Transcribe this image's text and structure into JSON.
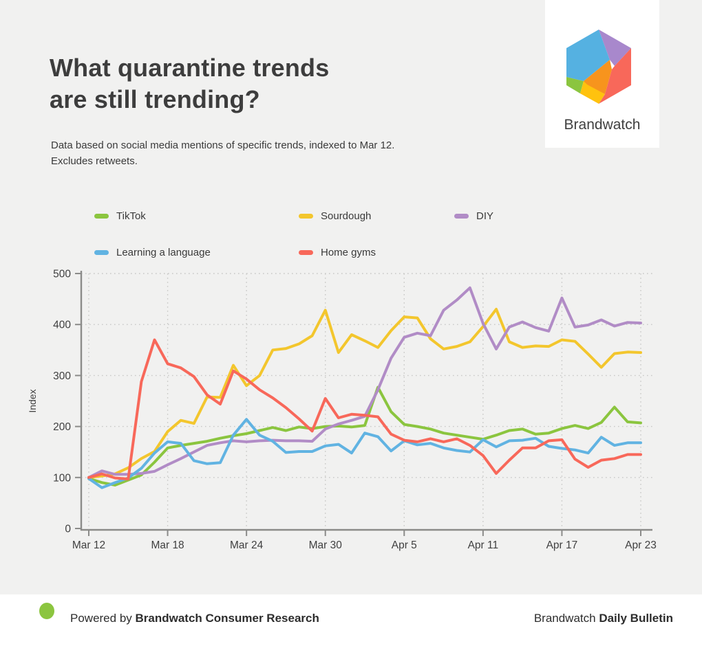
{
  "header": {
    "title": "What quarantine trends\nare still trending?",
    "subtitle": "Data based on social media mentions of specific trends, indexed to Mar 12.\nExcludes retweets.",
    "brand": "Brandwatch"
  },
  "logo": {
    "segments": {
      "blue": "#55b1e1",
      "purple": "#a888cc",
      "red": "#f8685a",
      "orange": "#f7941d",
      "yellow": "#ffc20e",
      "green": "#8bc53f"
    }
  },
  "colors": {
    "background": "#f1f1f0",
    "card": "#ffffff",
    "title_text": "#3d3d3d",
    "axis": "#8b8b89",
    "grid": "#c8c8c6",
    "tick_text": "#3f3f3f"
  },
  "chart_data": {
    "type": "line",
    "title": "What quarantine trends are still trending?",
    "xlabel": "",
    "ylabel": "Index",
    "ylim": [
      0,
      500
    ],
    "yticks": [
      0,
      100,
      200,
      300,
      400,
      500
    ],
    "grid": true,
    "grid_style": "dotted",
    "legend_position": "top",
    "categories": [
      "Mar 12",
      "Mar 13",
      "Mar 14",
      "Mar 15",
      "Mar 16",
      "Mar 17",
      "Mar 18",
      "Mar 19",
      "Mar 20",
      "Mar 21",
      "Mar 22",
      "Mar 23",
      "Mar 24",
      "Mar 25",
      "Mar 26",
      "Mar 27",
      "Mar 28",
      "Mar 29",
      "Mar 30",
      "Mar 31",
      "Apr 1",
      "Apr 2",
      "Apr 3",
      "Apr 4",
      "Apr 5",
      "Apr 6",
      "Apr 7",
      "Apr 8",
      "Apr 9",
      "Apr 10",
      "Apr 11",
      "Apr 12",
      "Apr 13",
      "Apr 14",
      "Apr 15",
      "Apr 16",
      "Apr 17",
      "Apr 18",
      "Apr 19",
      "Apr 20",
      "Apr 21",
      "Apr 22",
      "Apr 23"
    ],
    "x_tick_indices": [
      0,
      6,
      12,
      18,
      24,
      30,
      36,
      42
    ],
    "x_tick_labels": [
      "Mar 12",
      "Mar 18",
      "Mar 24",
      "Mar 30",
      "Apr 5",
      "Apr 11",
      "Apr 17",
      "Apr 23"
    ],
    "series": [
      {
        "name": "TikTok",
        "color": "#8bc53f",
        "values": [
          98,
          90,
          85,
          95,
          105,
          130,
          158,
          163,
          167,
          171,
          177,
          182,
          186,
          192,
          198,
          192,
          199,
          196,
          200,
          201,
          199,
          202,
          277,
          229,
          204,
          200,
          195,
          187,
          183,
          179,
          175,
          183,
          192,
          195,
          185,
          187,
          196,
          202,
          196,
          208,
          238,
          209,
          207
        ]
      },
      {
        "name": "Sourdough",
        "color": "#f3c62d",
        "values": [
          100,
          103,
          107,
          119,
          137,
          151,
          190,
          212,
          206,
          258,
          257,
          320,
          280,
          300,
          350,
          353,
          362,
          378,
          428,
          345,
          380,
          368,
          355,
          388,
          415,
          413,
          372,
          352,
          357,
          366,
          396,
          430,
          366,
          355,
          358,
          357,
          370,
          367,
          342,
          316,
          343,
          346,
          345
        ]
      },
      {
        "name": "DIY",
        "color": "#b18cc6",
        "values": [
          100,
          113,
          106,
          106,
          108,
          112,
          125,
          137,
          150,
          163,
          168,
          172,
          170,
          172,
          173,
          172,
          172,
          171,
          195,
          205,
          212,
          220,
          272,
          334,
          375,
          383,
          378,
          428,
          448,
          472,
          402,
          352,
          395,
          405,
          394,
          387,
          452,
          395,
          399,
          409,
          397,
          404,
          403
        ]
      },
      {
        "name": "Learning a language",
        "color": "#61b3e2",
        "values": [
          98,
          80,
          90,
          99,
          118,
          148,
          170,
          167,
          133,
          127,
          129,
          183,
          214,
          183,
          171,
          149,
          151,
          151,
          162,
          165,
          148,
          187,
          180,
          152,
          172,
          164,
          167,
          158,
          153,
          150,
          174,
          160,
          172,
          173,
          177,
          161,
          157,
          154,
          148,
          179,
          163,
          168,
          168
        ]
      },
      {
        "name": "Home gyms",
        "color": "#f8685a",
        "values": [
          100,
          107,
          99,
          97,
          288,
          370,
          323,
          315,
          298,
          262,
          244,
          309,
          293,
          272,
          256,
          237,
          215,
          191,
          255,
          217,
          224,
          222,
          219,
          185,
          173,
          170,
          176,
          170,
          176,
          163,
          143,
          108,
          134,
          158,
          158,
          172,
          174,
          136,
          120,
          134,
          137,
          145,
          145
        ]
      }
    ]
  },
  "footer": {
    "powered_prefix": "Powered by ",
    "powered_brand": "Brandwatch Consumer Research",
    "right_prefix": "Brandwatch ",
    "right_bold": "Daily Bulletin"
  }
}
